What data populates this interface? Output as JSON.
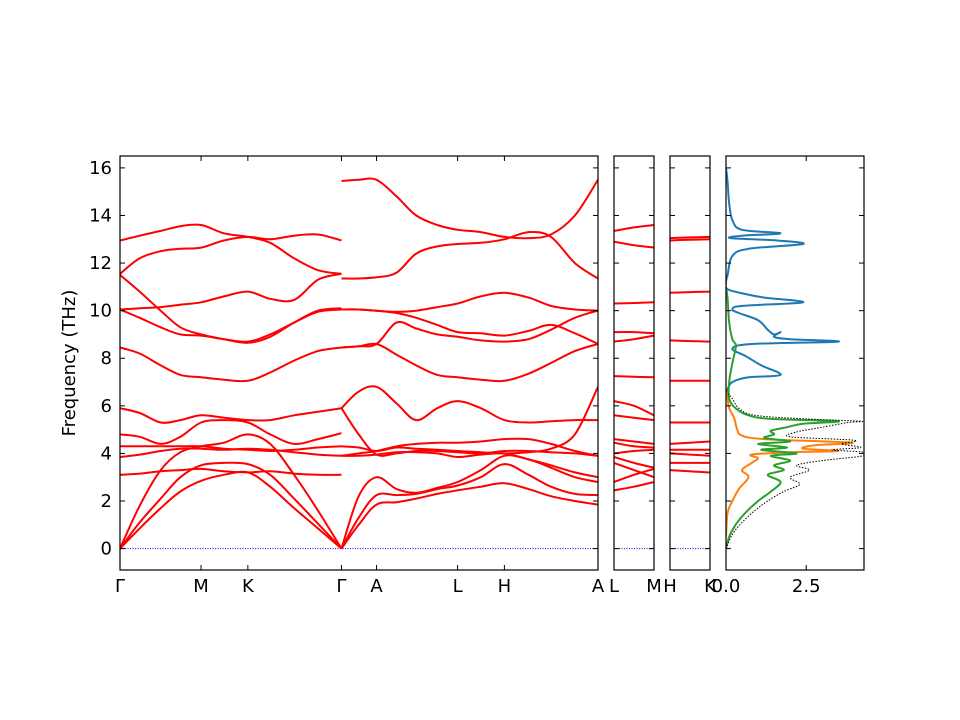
{
  "chart_data": [
    {
      "type": "line",
      "panel": "band-structure-main",
      "ylabel": "Frequency (THz)",
      "ylim": [
        -0.9,
        16.5
      ],
      "yticks": [
        0,
        2,
        4,
        6,
        8,
        10,
        12,
        14,
        16
      ],
      "tick_labels": [
        "Γ",
        "M",
        "K",
        "Γ",
        "A",
        "L",
        "H",
        "A"
      ],
      "tick_positions": [
        0,
        0.5774,
        0.9107,
        1.5774,
        1.8274,
        2.4048,
        2.7381,
        3.4048
      ],
      "segments": [
        {
          "x": [
            0,
            0.14,
            0.29,
            0.43,
            0.5774,
            0.74,
            0.9107,
            1.07,
            1.24,
            1.41,
            1.5774
          ],
          "bands": [
            [
              0,
              0.85,
              1.7,
              2.4,
              2.85,
              3.1,
              3.2,
              2.6,
              1.7,
              0.85,
              0
            ],
            [
              0,
              1.1,
              2.1,
              3.0,
              3.5,
              3.6,
              3.55,
              3.1,
              2.1,
              1.05,
              0
            ],
            [
              0,
              1.8,
              3.3,
              4.05,
              4.3,
              4.45,
              4.8,
              4.4,
              3.1,
              1.6,
              0
            ],
            [
              3.1,
              3.15,
              3.25,
              3.3,
              3.35,
              3.25,
              3.2,
              3.25,
              3.15,
              3.1,
              3.1
            ],
            [
              3.85,
              3.95,
              4.1,
              4.2,
              4.2,
              4.15,
              4.2,
              4.15,
              4.05,
              3.95,
              3.9
            ],
            [
              4.3,
              4.3,
              4.3,
              4.3,
              4.3,
              4.2,
              4.15,
              4.1,
              4.15,
              4.25,
              4.3
            ],
            [
              4.8,
              4.7,
              4.4,
              4.7,
              5.3,
              5.4,
              5.3,
              4.8,
              4.4,
              4.6,
              4.85
            ],
            [
              5.9,
              5.7,
              5.3,
              5.4,
              5.6,
              5.5,
              5.4,
              5.4,
              5.6,
              5.75,
              5.9
            ],
            [
              8.45,
              8.2,
              7.7,
              7.3,
              7.2,
              7.1,
              7.05,
              7.4,
              7.9,
              8.3,
              8.45
            ],
            [
              10.05,
              9.7,
              9.3,
              9.0,
              8.95,
              8.8,
              8.7,
              9.0,
              9.5,
              9.95,
              10.05
            ],
            [
              11.5,
              10.8,
              10.0,
              9.3,
              9.0,
              8.8,
              8.65,
              8.9,
              9.5,
              10.0,
              10.1
            ],
            [
              10.05,
              10.1,
              10.15,
              10.25,
              10.35,
              10.6,
              10.8,
              10.5,
              10.45,
              11.3,
              11.55
            ],
            [
              11.55,
              12.2,
              12.5,
              12.6,
              12.65,
              12.95,
              13.1,
              13.0,
              13.15,
              13.2,
              12.95
            ],
            [
              12.95,
              13.15,
              13.35,
              13.55,
              13.6,
              13.25,
              13.1,
              12.85,
              12.2,
              11.7,
              11.55
            ]
          ]
        },
        {
          "x": [
            1.5774,
            1.7,
            1.8274,
            1.97,
            2.11,
            2.26,
            2.4048,
            2.57,
            2.7381,
            2.91,
            3.07,
            3.24,
            3.4048
          ],
          "bands": [
            [
              0,
              1.0,
              1.85,
              1.95,
              2.1,
              2.3,
              2.45,
              2.6,
              2.75,
              2.5,
              2.2,
              2.0,
              1.85
            ],
            [
              0,
              1.3,
              2.25,
              2.25,
              2.3,
              2.5,
              2.65,
              3.0,
              3.55,
              3.1,
              2.6,
              2.3,
              2.25
            ],
            [
              0,
              2.2,
              3.0,
              2.5,
              2.35,
              2.55,
              2.8,
              3.3,
              3.9,
              3.75,
              3.4,
              3.0,
              2.8
            ],
            [
              3.9,
              3.9,
              3.95,
              4.05,
              4.05,
              4.0,
              3.85,
              3.95,
              4.0,
              3.75,
              3.5,
              3.2,
              3.0
            ],
            [
              5.9,
              4.8,
              3.95,
              4.0,
              4.1,
              4.1,
              4.05,
              4.0,
              4.1,
              4.1,
              4.05,
              4.0,
              3.9
            ],
            [
              5.9,
              6.6,
              6.8,
              6.1,
              5.4,
              5.9,
              6.2,
              5.9,
              5.4,
              5.3,
              5.35,
              5.4,
              5.4
            ],
            [
              3.9,
              4.0,
              4.1,
              4.3,
              4.4,
              4.45,
              4.45,
              4.5,
              4.6,
              4.6,
              4.4,
              4.1,
              3.9
            ],
            [
              4.3,
              4.25,
              4.1,
              4.25,
              4.2,
              4.15,
              4.1,
              4.05,
              4.0,
              4.05,
              4.2,
              4.8,
              6.8
            ],
            [
              8.45,
              8.5,
              8.6,
              8.15,
              7.7,
              7.3,
              7.2,
              7.1,
              7.05,
              7.35,
              7.8,
              8.3,
              8.6
            ],
            [
              8.45,
              8.5,
              8.6,
              9.5,
              9.25,
              9.0,
              8.9,
              8.75,
              8.7,
              8.8,
              9.2,
              9.7,
              10.0
            ],
            [
              10.05,
              10.05,
              10.0,
              9.9,
              9.7,
              9.4,
              9.1,
              9.05,
              8.95,
              9.15,
              9.4,
              9.05,
              8.6
            ],
            [
              10.05,
              10.05,
              10.0,
              9.95,
              10.0,
              10.15,
              10.3,
              10.6,
              10.75,
              10.55,
              10.2,
              10.05,
              10.0
            ],
            [
              11.35,
              11.35,
              11.4,
              11.6,
              12.4,
              12.7,
              12.8,
              12.85,
              13.0,
              13.3,
              13.1,
              12.0,
              11.35
            ],
            [
              15.45,
              15.5,
              15.5,
              14.8,
              14.0,
              13.6,
              13.4,
              13.3,
              13.1,
              13.05,
              13.2,
              14.0,
              15.5
            ]
          ]
        }
      ]
    },
    {
      "type": "line",
      "panel": "band-structure-L-M",
      "tick_labels": [
        "L",
        "M"
      ],
      "x": [
        0,
        0.5,
        1
      ],
      "bands": [
        [
          2.45,
          2.6,
          2.8
        ],
        [
          2.8,
          3.1,
          3.35
        ],
        [
          3.6,
          3.3,
          3.0
        ],
        [
          3.85,
          3.6,
          3.4
        ],
        [
          4.0,
          4.1,
          4.15
        ],
        [
          4.45,
          4.3,
          4.25
        ],
        [
          4.6,
          4.5,
          4.4
        ],
        [
          5.6,
          5.5,
          5.4
        ],
        [
          6.2,
          6.0,
          5.6
        ],
        [
          7.25,
          7.22,
          7.2
        ],
        [
          8.7,
          8.8,
          8.95
        ],
        [
          9.1,
          9.1,
          9.05
        ],
        [
          10.3,
          10.32,
          10.35
        ],
        [
          12.9,
          12.75,
          12.65
        ],
        [
          13.35,
          13.5,
          13.6
        ]
      ]
    },
    {
      "type": "line",
      "panel": "band-structure-H-K",
      "tick_labels": [
        "H",
        "K"
      ],
      "x": [
        0,
        0.5,
        1
      ],
      "bands": [
        [
          3.3,
          3.25,
          3.2
        ],
        [
          3.6,
          3.6,
          3.6
        ],
        [
          4.0,
          3.95,
          3.9
        ],
        [
          4.15,
          4.15,
          4.15
        ],
        [
          4.4,
          4.45,
          4.5
        ],
        [
          5.3,
          5.3,
          5.3
        ],
        [
          7.05,
          7.05,
          7.05
        ],
        [
          8.75,
          8.72,
          8.7
        ],
        [
          10.75,
          10.78,
          10.8
        ],
        [
          12.95,
          12.98,
          13.0
        ],
        [
          13.05,
          13.08,
          13.1
        ]
      ]
    },
    {
      "type": "line",
      "panel": "dos",
      "xlim": [
        0,
        4.3
      ],
      "xticks": [
        0.0,
        2.5
      ],
      "xtick_labels": [
        "0.0",
        "2.5"
      ],
      "series": [
        {
          "color": "#1f77b4",
          "points": [
            [
              0,
              16.0
            ],
            [
              0.05,
              15.4
            ],
            [
              0.1,
              14.5
            ],
            [
              0.2,
              13.8
            ],
            [
              0.5,
              13.4
            ],
            [
              1.7,
              13.25
            ],
            [
              0.5,
              13.15
            ],
            [
              0.15,
              13.05
            ],
            [
              1.6,
              12.95
            ],
            [
              2.4,
              12.8
            ],
            [
              0.7,
              12.6
            ],
            [
              0.2,
              12.3
            ],
            [
              0.05,
              11.5
            ],
            [
              0.0,
              11.2
            ],
            [
              0.05,
              10.9
            ],
            [
              0.6,
              10.7
            ],
            [
              1.2,
              10.55
            ],
            [
              2.4,
              10.35
            ],
            [
              0.5,
              10.2
            ],
            [
              0.2,
              10.05
            ],
            [
              0.4,
              9.9
            ],
            [
              1.0,
              9.6
            ],
            [
              1.3,
              9.2
            ],
            [
              1.5,
              9.0
            ],
            [
              1.7,
              9.1
            ],
            [
              1.5,
              8.9
            ],
            [
              2.0,
              8.8
            ],
            [
              3.5,
              8.7
            ],
            [
              0.8,
              8.6
            ],
            [
              0.2,
              8.4
            ],
            [
              0.6,
              8.1
            ],
            [
              1.1,
              7.7
            ],
            [
              1.7,
              7.3
            ],
            [
              0.7,
              7.2
            ],
            [
              0.2,
              7.0
            ],
            [
              0.05,
              6.7
            ],
            [
              0,
              6.5
            ]
          ]
        },
        {
          "color": "#ff7f0e",
          "points": [
            [
              0,
              0.5
            ],
            [
              0.05,
              1.5
            ],
            [
              0.2,
              2.0
            ],
            [
              0.4,
              2.5
            ],
            [
              0.7,
              3.0
            ],
            [
              0.5,
              3.3
            ],
            [
              0.8,
              3.6
            ],
            [
              1.0,
              3.8
            ],
            [
              0.8,
              3.95
            ],
            [
              2.0,
              4.05
            ],
            [
              3.5,
              4.1
            ],
            [
              2.4,
              4.2
            ],
            [
              2.8,
              4.35
            ],
            [
              3.9,
              4.45
            ],
            [
              1.2,
              4.6
            ],
            [
              0.5,
              4.75
            ],
            [
              0.35,
              5.0
            ],
            [
              0.25,
              5.5
            ],
            [
              0.1,
              5.9
            ],
            [
              0.05,
              6.3
            ],
            [
              0,
              6.6
            ]
          ]
        },
        {
          "color": "#2ca02c",
          "points": [
            [
              0,
              0.0
            ],
            [
              0.1,
              0.5
            ],
            [
              0.3,
              1.0
            ],
            [
              0.6,
              1.5
            ],
            [
              1.0,
              2.0
            ],
            [
              1.4,
              2.4
            ],
            [
              1.7,
              2.8
            ],
            [
              1.3,
              3.1
            ],
            [
              1.8,
              3.3
            ],
            [
              1.5,
              3.5
            ],
            [
              2.0,
              3.7
            ],
            [
              1.4,
              3.9
            ],
            [
              2.2,
              4.0
            ],
            [
              1.1,
              4.15
            ],
            [
              1.9,
              4.25
            ],
            [
              1.0,
              4.4
            ],
            [
              2.0,
              4.5
            ],
            [
              1.2,
              4.65
            ],
            [
              1.5,
              4.8
            ],
            [
              1.4,
              4.95
            ],
            [
              1.9,
              5.1
            ],
            [
              2.4,
              5.25
            ],
            [
              3.5,
              5.35
            ],
            [
              1.4,
              5.45
            ],
            [
              0.7,
              5.6
            ],
            [
              0.3,
              5.9
            ],
            [
              0.1,
              6.3
            ],
            [
              0.1,
              7.0
            ],
            [
              0.2,
              7.8
            ],
            [
              0.3,
              8.4
            ],
            [
              0.3,
              8.6
            ],
            [
              0.2,
              8.8
            ],
            [
              0.1,
              9.5
            ],
            [
              0.05,
              10.5
            ],
            [
              0,
              11
            ]
          ]
        },
        {
          "color": "#000000",
          "dashed": true,
          "points": [
            [
              0,
              0.0
            ],
            [
              0.2,
              0.6
            ],
            [
              0.5,
              1.1
            ],
            [
              0.9,
              1.6
            ],
            [
              1.3,
              2.0
            ],
            [
              1.8,
              2.4
            ],
            [
              2.3,
              2.7
            ],
            [
              2.0,
              3.0
            ],
            [
              2.6,
              3.3
            ],
            [
              2.2,
              3.5
            ],
            [
              3.0,
              3.7
            ],
            [
              4.3,
              3.9
            ],
            [
              4.3,
              4.05
            ],
            [
              3.3,
              4.15
            ],
            [
              4.2,
              4.25
            ],
            [
              3.6,
              4.4
            ],
            [
              4.0,
              4.55
            ],
            [
              2.0,
              4.7
            ],
            [
              2.2,
              4.9
            ],
            [
              3.0,
              5.1
            ],
            [
              3.8,
              5.3
            ],
            [
              4.2,
              5.35
            ],
            [
              2.5,
              5.45
            ],
            [
              0.9,
              5.6
            ],
            [
              0.4,
              5.9
            ],
            [
              0.2,
              6.3
            ],
            [
              0,
              6.6
            ]
          ]
        }
      ]
    }
  ]
}
